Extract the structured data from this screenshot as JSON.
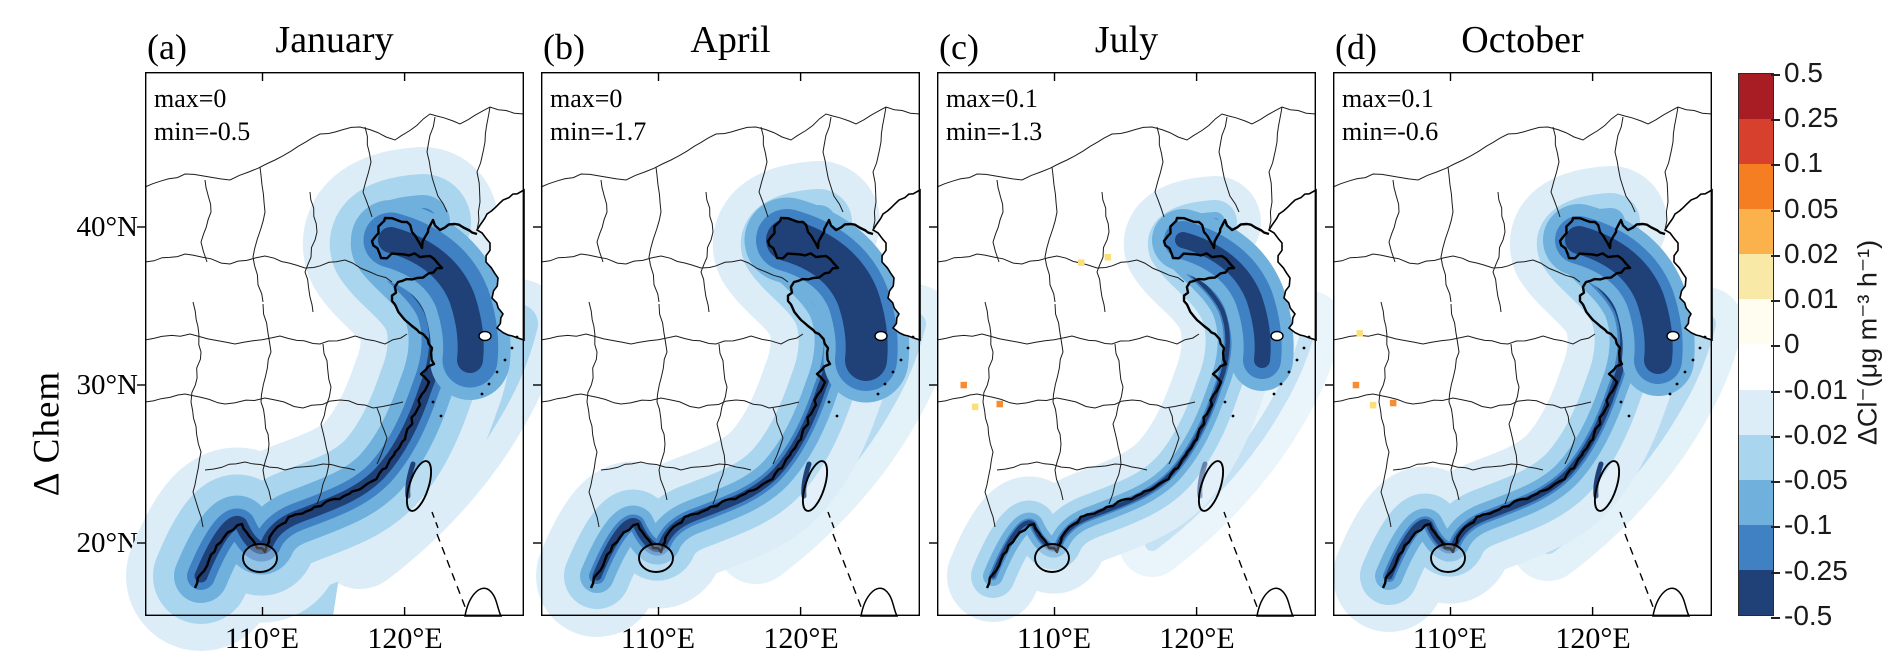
{
  "figure": {
    "ylabel": "Δ Chem",
    "panels": [
      {
        "label": "(a)",
        "title": "January",
        "max_text": "max=0",
        "min_text": "min=-0.5"
      },
      {
        "label": "(b)",
        "title": "April",
        "max_text": "max=0",
        "min_text": "min=-1.7"
      },
      {
        "label": "(c)",
        "title": "July",
        "max_text": "max=0.1",
        "min_text": "min=-1.3"
      },
      {
        "label": "(d)",
        "title": "October",
        "max_text": "max=0.1",
        "min_text": "min=-0.6"
      }
    ],
    "x_tick_labels": [
      "110°E",
      "120°E"
    ],
    "y_tick_labels": [
      "40°N",
      "30°N",
      "20°N"
    ],
    "colorbar": {
      "unit_label": "ΔCl⁻(μg m⁻³ h⁻¹)",
      "tick_labels": [
        "0.5",
        "0.25",
        "0.1",
        "0.05",
        "0.02",
        "0.01",
        "0",
        "-0.01",
        "-0.02",
        "-0.05",
        "-0.1",
        "-0.25",
        "-0.5"
      ],
      "segment_colors_top_to_bottom": [
        "#a81c24",
        "#d6402c",
        "#f57d22",
        "#fbb24c",
        "#f9e9a6",
        "#fffdf0",
        "#ffffff",
        "#dcedf8",
        "#aad5ee",
        "#6fb0dd",
        "#3f81c2",
        "#1f4178"
      ]
    },
    "colors": {
      "coastline": "#000000",
      "province_border": "#1c1c1c",
      "spot_orange": "#f68d34",
      "spot_pale_yellow": "#fbdf7a"
    }
  },
  "chart_data": {
    "type": "heatmap",
    "subtype": "filled_contour_map_grid",
    "figure_row_label": "Δ Chem",
    "variable": "ΔCl⁻",
    "units": "μg m⁻³ h⁻¹",
    "contour_levels": [
      -0.5,
      -0.25,
      -0.1,
      -0.05,
      -0.02,
      -0.01,
      0,
      0.01,
      0.02,
      0.05,
      0.1,
      0.25,
      0.5
    ],
    "palette_low_to_high": [
      "#1f4178",
      "#3f81c2",
      "#6fb0dd",
      "#aad5ee",
      "#dcedf8",
      "#ffffff",
      "#fffdf0",
      "#f9e9a6",
      "#fbb24c",
      "#f57d22",
      "#d6402c",
      "#a81c24"
    ],
    "x_ticks_deg_east": [
      110,
      120
    ],
    "y_ticks_deg_north": [
      40,
      30,
      20
    ],
    "legend_position": "right",
    "panels": [
      {
        "label": "(a)",
        "month": "January",
        "max": 0,
        "min": -0.5,
        "coastal_band_strength": "strongest",
        "positive_spots": []
      },
      {
        "label": "(b)",
        "month": "April",
        "max": 0,
        "min": -1.7,
        "coastal_band_strength": "strong",
        "positive_spots": []
      },
      {
        "label": "(c)",
        "month": "July",
        "max": 0.1,
        "min": -1.3,
        "coastal_band_strength": "weakest",
        "positive_spots": [
          {
            "x": 0.38,
            "y": 0.35,
            "c": "pale"
          },
          {
            "x": 0.45,
            "y": 0.34,
            "c": "pale"
          },
          {
            "x": 0.07,
            "y": 0.575,
            "c": "orange"
          },
          {
            "x": 0.165,
            "y": 0.61,
            "c": "orange"
          },
          {
            "x": 0.1,
            "y": 0.615,
            "c": "pale"
          }
        ]
      },
      {
        "label": "(d)",
        "month": "October",
        "max": 0.1,
        "min": -0.6,
        "coastal_band_strength": "moderate",
        "positive_spots": [
          {
            "x": 0.06,
            "y": 0.575,
            "c": "orange"
          },
          {
            "x": 0.158,
            "y": 0.608,
            "c": "orange"
          },
          {
            "x": 0.105,
            "y": 0.612,
            "c": "pale"
          },
          {
            "x": 0.07,
            "y": 0.48,
            "c": "pale"
          }
        ]
      }
    ]
  }
}
